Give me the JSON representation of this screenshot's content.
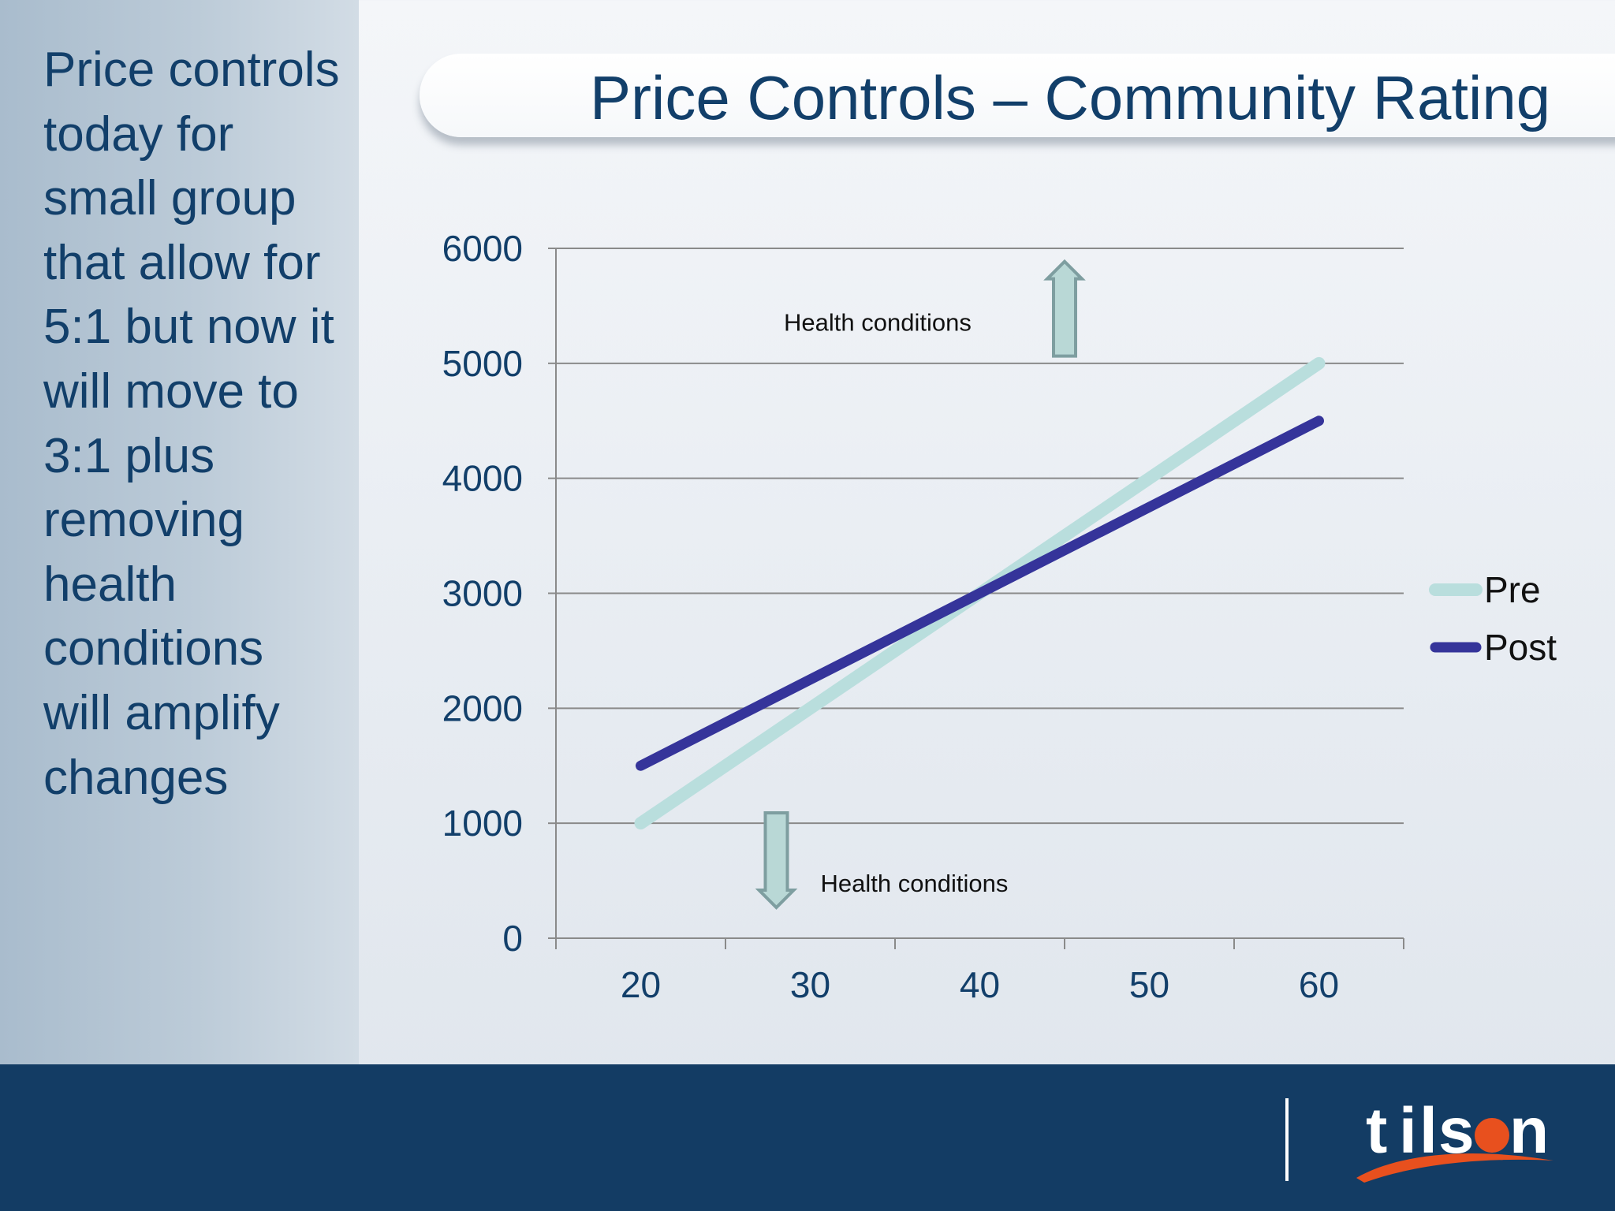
{
  "sidebar": {
    "text": "Price controls today for small group that allow for 5:1 but now it will move to 3:1 plus removing health conditions will amplify changes"
  },
  "header": {
    "title": "Price Controls – Community Rating"
  },
  "chart_data": {
    "type": "line",
    "title": "",
    "xlabel": "",
    "ylabel": "",
    "x": [
      20,
      60
    ],
    "x_ticks": [
      20,
      30,
      40,
      50,
      60
    ],
    "y_ticks": [
      0,
      1000,
      2000,
      3000,
      4000,
      5000,
      6000
    ],
    "xlim": [
      15,
      65
    ],
    "ylim": [
      0,
      6000
    ],
    "grid": true,
    "legend_position": "right",
    "series": [
      {
        "name": "Pre",
        "x": [
          20,
          60
        ],
        "values": [
          1000,
          5000
        ],
        "color": "#b9dedd"
      },
      {
        "name": "Post",
        "x": [
          20,
          60
        ],
        "values": [
          1500,
          4500
        ],
        "color": "#35349a"
      }
    ],
    "annotations": [
      {
        "text": "Health conditions",
        "x": 45,
        "y": 5200,
        "arrow": "up"
      },
      {
        "text": "Health conditions",
        "x": 28,
        "y": 850,
        "arrow": "down"
      }
    ]
  },
  "footer": {
    "logo_text": "tilson",
    "logo_letters": [
      "t",
      "i",
      "l",
      "s",
      "n"
    ],
    "logo_accent": "#e8501e",
    "background": "#133c64"
  }
}
